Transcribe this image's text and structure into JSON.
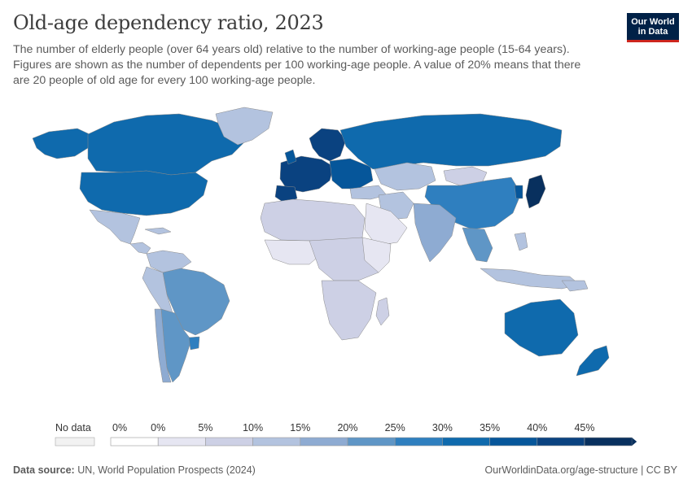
{
  "header": {
    "title": "Old-age dependency ratio, 2023",
    "subtitle": "The number of elderly people (over 64 years old) relative to the number of working-age people (15-64 years). Figures are shown as the number of dependents per 100 working-age people. A value of 20% means that there are 20 people of old age for every 100 working-age people."
  },
  "logo": {
    "line1": "Our World",
    "line2": "in Data"
  },
  "legend": {
    "no_data_label": "No data",
    "bins": [
      {
        "label": "0%",
        "color": "#ffffff"
      },
      {
        "label": "0%",
        "color": "#e6e6f2"
      },
      {
        "label": "5%",
        "color": "#cdd0e5"
      },
      {
        "label": "10%",
        "color": "#b3c3df"
      },
      {
        "label": "15%",
        "color": "#8eabd2"
      },
      {
        "label": "20%",
        "color": "#5f96c6"
      },
      {
        "label": "25%",
        "color": "#2f7fbf"
      },
      {
        "label": "30%",
        "color": "#0f6aad"
      },
      {
        "label": "35%",
        "color": "#06569a"
      },
      {
        "label": "40%",
        "color": "#0a4280"
      },
      {
        "label": "45%",
        "color": "#08305e"
      }
    ]
  },
  "map": {
    "colors": {
      "ocean": "#ffffff",
      "border": "#9a9a9a",
      "no_data": "#eeeeee"
    }
  },
  "footer": {
    "source_label": "Data source:",
    "source_text": "UN, World Population Prospects (2024)",
    "url": "OurWorldinData.org/age-structure | CC BY"
  }
}
